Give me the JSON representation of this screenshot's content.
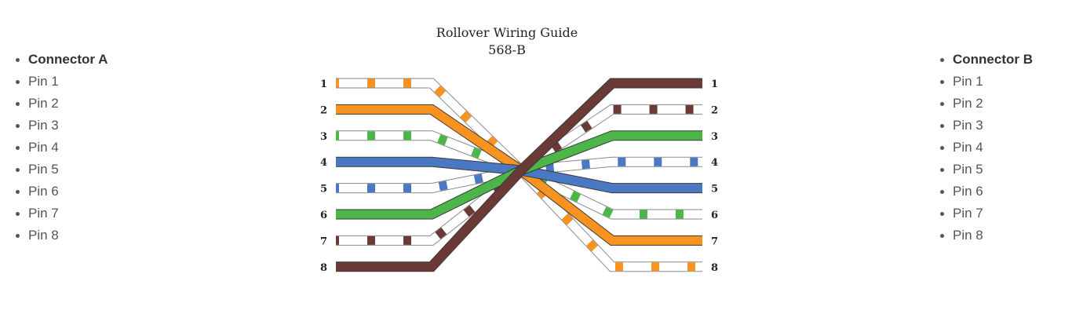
{
  "connector_a": {
    "header": "Connector A",
    "pins": [
      "Pin 1",
      "Pin 2",
      "Pin 3",
      "Pin 4",
      "Pin 5",
      "Pin 6",
      "Pin 7",
      "Pin 8"
    ]
  },
  "connector_b": {
    "header": "Connector B",
    "pins": [
      "Pin 1",
      "Pin 2",
      "Pin 3",
      "Pin 4",
      "Pin 5",
      "Pin 6",
      "Pin 7",
      "Pin 8"
    ]
  },
  "diagram": {
    "title": "Rollover Wiring Guide",
    "subtitle": "568-B",
    "pin_numbers": [
      "1",
      "2",
      "3",
      "4",
      "5",
      "6",
      "7",
      "8"
    ],
    "colors": {
      "orange": "#f7931e",
      "green": "#4cb748",
      "blue": "#4a78c2",
      "brown": "#6b3a37"
    },
    "wires": [
      {
        "pin_a": 1,
        "pin_b": 8,
        "color": "orange",
        "striped": true
      },
      {
        "pin_a": 2,
        "pin_b": 7,
        "color": "orange",
        "striped": false
      },
      {
        "pin_a": 3,
        "pin_b": 6,
        "color": "green",
        "striped": true
      },
      {
        "pin_a": 4,
        "pin_b": 5,
        "color": "blue",
        "striped": false
      },
      {
        "pin_a": 5,
        "pin_b": 4,
        "color": "blue",
        "striped": true
      },
      {
        "pin_a": 6,
        "pin_b": 3,
        "color": "green",
        "striped": false
      },
      {
        "pin_a": 7,
        "pin_b": 2,
        "color": "brown",
        "striped": true
      },
      {
        "pin_a": 8,
        "pin_b": 1,
        "color": "brown",
        "striped": false
      }
    ]
  }
}
